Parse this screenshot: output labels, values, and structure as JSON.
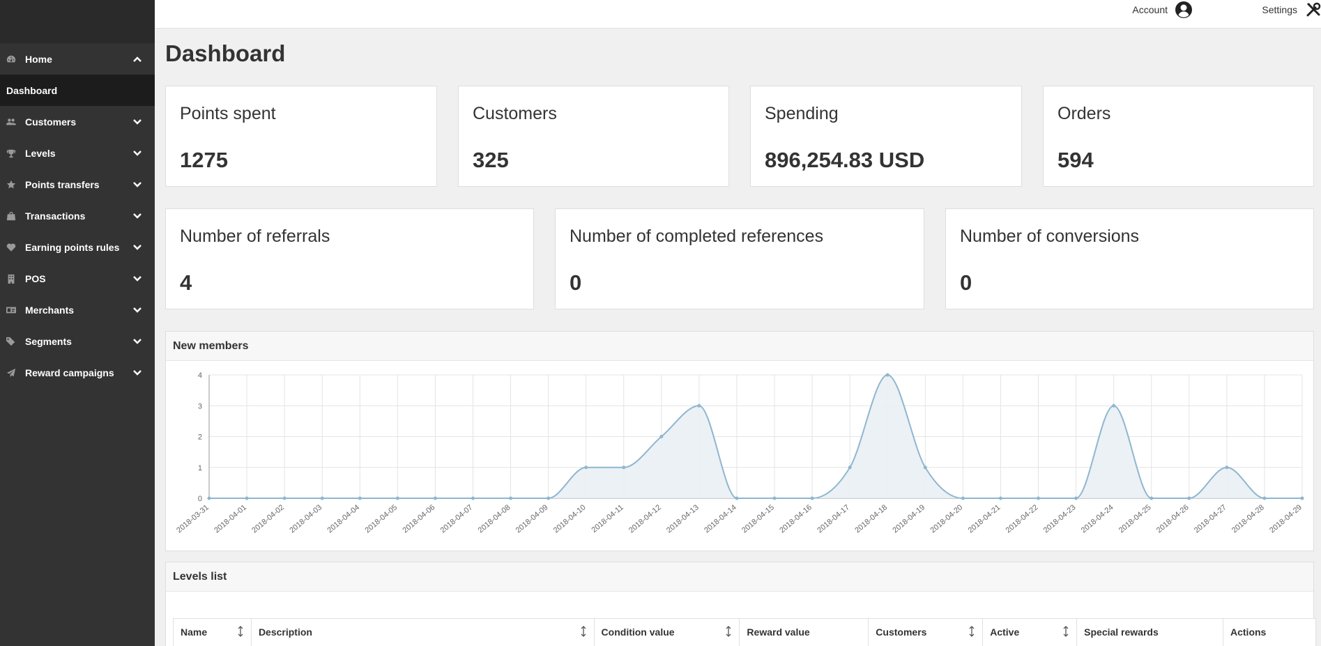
{
  "topbar": {
    "account_label": "Account",
    "settings_label": "Settings"
  },
  "sidebar": {
    "items": [
      {
        "label": "Home",
        "icon": "dashboard-icon",
        "expanded": true
      },
      {
        "label": "Customers",
        "icon": "users-icon"
      },
      {
        "label": "Levels",
        "icon": "trophy-icon"
      },
      {
        "label": "Points transfers",
        "icon": "star-icon"
      },
      {
        "label": "Transactions",
        "icon": "shopping-bag-icon"
      },
      {
        "label": "Earning points rules",
        "icon": "heart-icon"
      },
      {
        "label": "POS",
        "icon": "building-icon"
      },
      {
        "label": "Merchants",
        "icon": "id-card-icon"
      },
      {
        "label": "Segments",
        "icon": "tags-icon"
      },
      {
        "label": "Reward campaigns",
        "icon": "paper-plane-icon"
      }
    ],
    "sub_items": [
      {
        "label": "Dashboard",
        "active": true
      }
    ]
  },
  "page": {
    "title": "Dashboard"
  },
  "stats_row1": [
    {
      "label": "Points spent",
      "value": "1275"
    },
    {
      "label": "Customers",
      "value": "325"
    },
    {
      "label": "Spending",
      "value": "896,254.83 USD"
    },
    {
      "label": "Orders",
      "value": "594"
    }
  ],
  "stats_row2": [
    {
      "label": "Number of referrals",
      "value": "4"
    },
    {
      "label": "Number of completed references",
      "value": "0"
    },
    {
      "label": "Number of conversions",
      "value": "0"
    }
  ],
  "new_members": {
    "title": "New members"
  },
  "chart_data": {
    "type": "area",
    "title": "New members",
    "x": [
      "2018-03-31",
      "2018-04-01",
      "2018-04-02",
      "2018-04-03",
      "2018-04-04",
      "2018-04-05",
      "2018-04-06",
      "2018-04-07",
      "2018-04-08",
      "2018-04-09",
      "2018-04-10",
      "2018-04-11",
      "2018-04-12",
      "2018-04-13",
      "2018-04-14",
      "2018-04-15",
      "2018-04-16",
      "2018-04-17",
      "2018-04-18",
      "2018-04-19",
      "2018-04-20",
      "2018-04-21",
      "2018-04-22",
      "2018-04-23",
      "2018-04-24",
      "2018-04-25",
      "2018-04-26",
      "2018-04-27",
      "2018-04-28",
      "2018-04-29"
    ],
    "values": [
      0,
      0,
      0,
      0,
      0,
      0,
      0,
      0,
      0,
      0,
      1,
      1,
      2,
      3,
      0,
      0,
      0,
      1,
      4,
      1,
      0,
      0,
      0,
      0,
      3,
      0,
      0,
      1,
      0,
      0
    ],
    "y_ticks": [
      "0",
      "1",
      "2",
      "3",
      "4"
    ],
    "ylim": [
      0,
      4
    ],
    "grid": true,
    "colors": {
      "line": "#8fb6cf",
      "fill": "#e9eff3",
      "grid": "#e4e4e4",
      "axis": "#999999"
    }
  },
  "levels_list": {
    "title": "Levels list",
    "columns": [
      {
        "label": "Name",
        "sortable": true
      },
      {
        "label": "Description",
        "sortable": true
      },
      {
        "label": "Condition value",
        "sortable": true
      },
      {
        "label": "Reward value",
        "sortable": false
      },
      {
        "label": "Customers",
        "sortable": true
      },
      {
        "label": "Active",
        "sortable": true
      },
      {
        "label": "Special rewards",
        "sortable": false
      },
      {
        "label": "Actions",
        "sortable": false
      }
    ]
  }
}
